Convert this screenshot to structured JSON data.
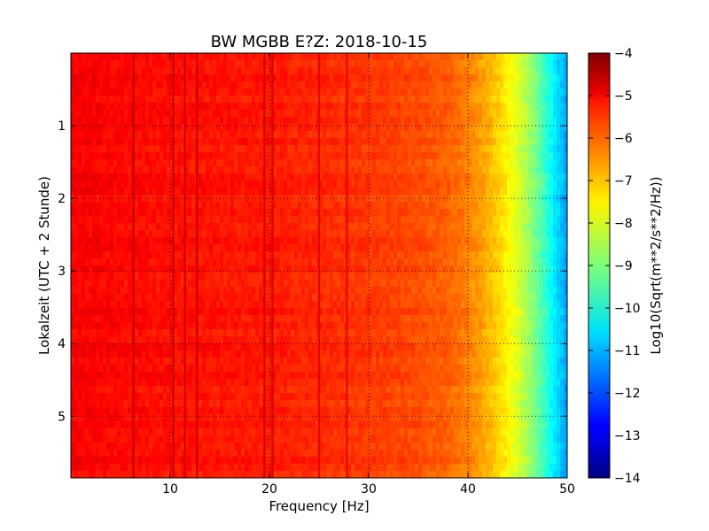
{
  "chart_data": {
    "type": "heatmap",
    "title": "BW MGBB E?Z: 2018-10-15",
    "xlabel": "Frequency [Hz]",
    "ylabel": "Lokalzeit (UTC + 2 Stunde)",
    "xlim": [
      0,
      50
    ],
    "ylim": [
      5.85,
      0
    ],
    "x_ticks": [
      10,
      20,
      30,
      40,
      50
    ],
    "x_tick_labels": [
      "10",
      "20",
      "30",
      "40",
      "50"
    ],
    "y_ticks": [
      1,
      2,
      3,
      4,
      5
    ],
    "y_tick_labels": [
      "1",
      "2",
      "3",
      "4",
      "5"
    ],
    "grid": true,
    "colorscale": "jet",
    "colorbar": {
      "label": "Log10(Sqrt(m**2/s**2/Hz))",
      "range": [
        -14,
        -4
      ],
      "ticks": [
        -4,
        -5,
        -6,
        -7,
        -8,
        -9,
        -10,
        -11,
        -12,
        -13,
        -14
      ],
      "tick_labels": [
        "−4",
        "−5",
        "−6",
        "−7",
        "−8",
        "−9",
        "−10",
        "−11",
        "−12",
        "−13",
        "−14"
      ]
    },
    "spectrum_profile": {
      "frequency_hz": [
        0,
        5,
        10,
        20,
        30,
        35,
        38,
        40,
        42,
        43,
        44,
        45,
        46,
        47,
        48,
        49,
        50
      ],
      "log10_amplitude": [
        -5.2,
        -5.3,
        -5.4,
        -5.5,
        -5.8,
        -6.0,
        -6.2,
        -6.5,
        -7.0,
        -7.3,
        -7.7,
        -8.1,
        -8.6,
        -9.2,
        -9.9,
        -10.6,
        -11.2
      ]
    },
    "spectral_lines_hz": [
      6.3,
      10.3,
      11.5,
      12.7,
      19.5,
      20.3,
      25.0,
      27.8
    ]
  }
}
